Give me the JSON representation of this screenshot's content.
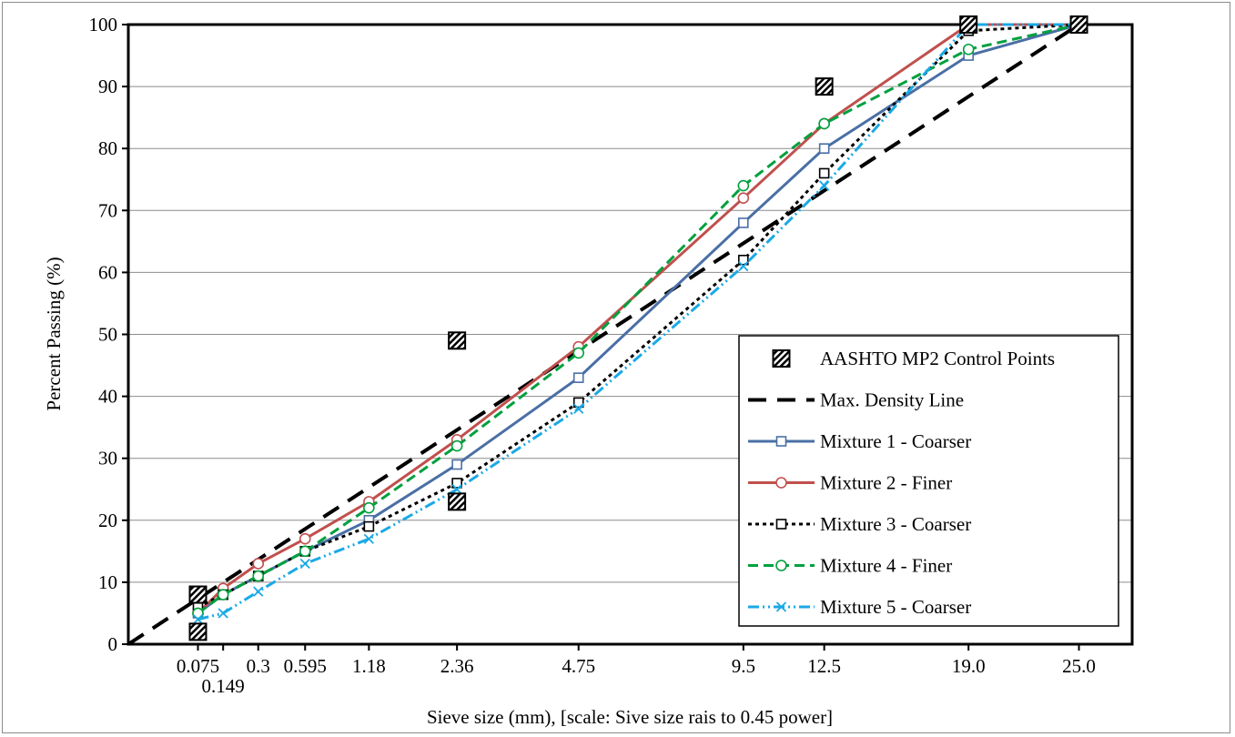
{
  "chart_data": {
    "type": "line",
    "title": "",
    "xlabel": "Sieve size (mm), [scale: Sive size rais to 0.45 power]",
    "ylabel": "Percent Passing (%)",
    "x_scale": "sieve size raised to 0.45 power",
    "ylim": [
      0,
      100
    ],
    "y_ticks": [
      0,
      10,
      20,
      30,
      40,
      50,
      60,
      70,
      80,
      90,
      100
    ],
    "x_ticks": [
      {
        "value": 0.075,
        "label": "0.075"
      },
      {
        "value": 0.149,
        "label": "0.149"
      },
      {
        "value": 0.3,
        "label": "0.3"
      },
      {
        "value": 0.595,
        "label": "0.595"
      },
      {
        "value": 1.18,
        "label": "1.18"
      },
      {
        "value": 2.36,
        "label": "2.36"
      },
      {
        "value": 4.75,
        "label": "4.75"
      },
      {
        "value": 9.5,
        "label": "9.5"
      },
      {
        "value": 12.5,
        "label": "12.5"
      },
      {
        "value": 19.0,
        "label": "19.0"
      },
      {
        "value": 25.0,
        "label": "25.0"
      }
    ],
    "grid": "horizontal",
    "legend_position": "right",
    "control_points": {
      "name": "AASHTO MP2 Control Points",
      "points": [
        {
          "x": 0.075,
          "y": 2
        },
        {
          "x": 0.075,
          "y": 8
        },
        {
          "x": 2.36,
          "y": 23
        },
        {
          "x": 2.36,
          "y": 49
        },
        {
          "x": 12.5,
          "y": 90
        },
        {
          "x": 19.0,
          "y": 100
        },
        {
          "x": 25.0,
          "y": 100
        }
      ]
    },
    "max_density_line": {
      "name": "Max. Density Line",
      "points": [
        {
          "x": 0,
          "y": 0
        },
        {
          "x": 25.0,
          "y": 100
        }
      ]
    },
    "series": [
      {
        "name": "Mixture 1 - Coarser",
        "color": "#4a6fa5",
        "dash": "",
        "marker": "square",
        "x": [
          0.075,
          0.149,
          0.3,
          0.595,
          1.18,
          2.36,
          4.75,
          9.5,
          12.5,
          19.0,
          25.0
        ],
        "values": [
          5,
          8,
          11,
          15,
          20,
          29,
          43,
          68,
          80,
          95,
          100
        ]
      },
      {
        "name": "Mixture 2 - Finer",
        "color": "#c0504d",
        "dash": "",
        "marker": "circle",
        "x": [
          0.075,
          0.149,
          0.3,
          0.595,
          1.18,
          2.36,
          4.75,
          9.5,
          12.5,
          19.0,
          25.0
        ],
        "values": [
          5,
          9,
          13,
          17,
          23,
          33,
          48,
          72,
          84,
          100,
          100
        ]
      },
      {
        "name": "Mixture 3 - Coarser",
        "color": "#000000",
        "dash": "4,4",
        "marker": "square",
        "x": [
          0.075,
          0.149,
          0.3,
          0.595,
          1.18,
          2.36,
          4.75,
          9.5,
          12.5,
          19.0,
          25.0
        ],
        "values": [
          6,
          8,
          11,
          15,
          19,
          26,
          39,
          62,
          76,
          99,
          100
        ]
      },
      {
        "name": "Mixture 4 - Finer",
        "color": "#00a03e",
        "dash": "11,6",
        "marker": "circle",
        "x": [
          0.075,
          0.149,
          0.3,
          0.595,
          1.18,
          2.36,
          4.75,
          9.5,
          12.5,
          19.0,
          25.0
        ],
        "values": [
          5,
          8,
          11,
          15,
          22,
          32,
          47,
          74,
          84,
          96,
          100
        ]
      },
      {
        "name": "Mixture 5 - Coarser",
        "color": "#1aa9e6",
        "dash": "12,4,2,4,2,4",
        "marker": "x",
        "x": [
          0.075,
          0.149,
          0.3,
          0.595,
          1.18,
          2.36,
          4.75,
          9.5,
          12.5,
          19.0,
          25.0
        ],
        "values": [
          4,
          5,
          8.5,
          13,
          17,
          25,
          38,
          61,
          74,
          100,
          100
        ]
      }
    ]
  }
}
